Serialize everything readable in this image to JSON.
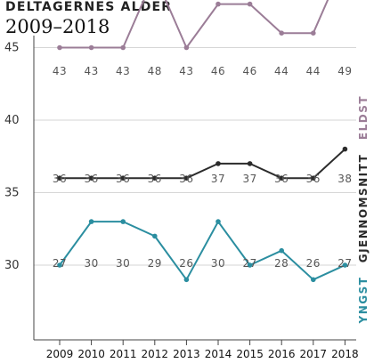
{
  "header": {
    "title": "DELTAGERNES ALDER",
    "subtitle": "2009–2018"
  },
  "chart_data": {
    "type": "line",
    "title": "DELTAGERNES ALDER",
    "subtitle": "2009–2018",
    "xlabel": "",
    "ylabel": "",
    "x": [
      "2009",
      "2010",
      "2011",
      "2012",
      "2013",
      "2014",
      "2015",
      "2016",
      "2017",
      "2018"
    ],
    "y_ticks": [
      30,
      35,
      40,
      45
    ],
    "grid": true,
    "series": [
      {
        "name": "ELDST",
        "color": "#9b7d97",
        "offset": 2,
        "values": [
          43,
          43,
          43,
          48,
          43,
          46,
          46,
          44,
          44,
          49
        ],
        "labels": [
          "43",
          "43",
          "43",
          "48",
          "43",
          "46",
          "46",
          "44",
          "44",
          "49"
        ]
      },
      {
        "name": "GJENNOMSNITT",
        "color": "#2b2b2b",
        "offset": 0,
        "values": [
          36,
          36,
          36,
          36,
          36,
          37,
          37,
          36,
          36,
          38
        ],
        "labels": [
          "36",
          "36",
          "36",
          "36",
          "36",
          "37",
          "37",
          "36",
          "36",
          "38"
        ]
      },
      {
        "name": "YNGST",
        "color": "#2b8ea0",
        "offset": 3,
        "values": [
          27,
          30,
          30,
          29,
          26,
          30,
          27,
          28,
          26,
          27
        ],
        "labels": [
          "27",
          "30",
          "30",
          "29",
          "26",
          "30",
          "27",
          "28",
          "26",
          "27"
        ]
      }
    ],
    "legend": "right, rotated vertical labels"
  }
}
